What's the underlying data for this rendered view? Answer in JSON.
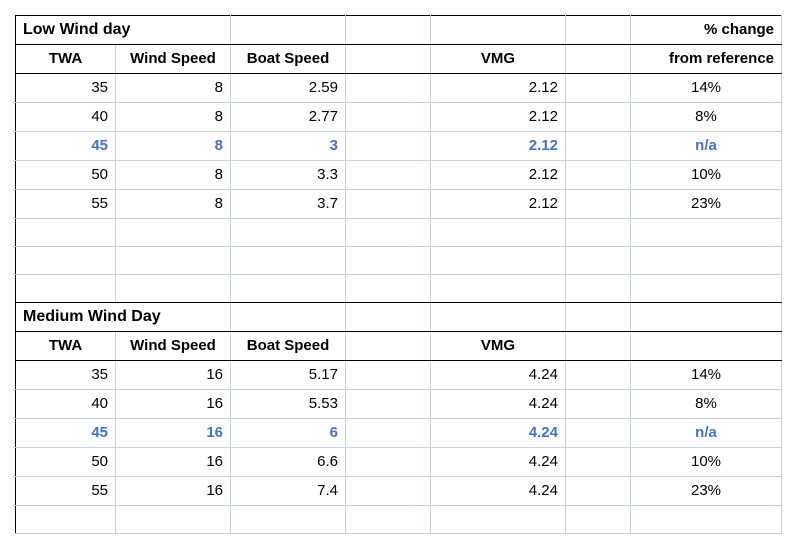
{
  "colors": {
    "background": "#ffffff",
    "gridline": "#c9d2e1",
    "border": "#000000",
    "highlight_text": "#4472c4",
    "text": "#000000"
  },
  "low_wind": {
    "title": "Low Wind day",
    "pct_change_header": "% change",
    "pct_change_subheader": "from reference",
    "headers": {
      "twa": "TWA",
      "wind_speed": "Wind Speed",
      "boat_speed": "Boat Speed",
      "vmg": "VMG"
    },
    "rows": [
      {
        "twa": "35",
        "wind_speed": "8",
        "boat_speed": "2.59",
        "vmg": "2.12",
        "pct_change": "14%",
        "highlighted": false
      },
      {
        "twa": "40",
        "wind_speed": "8",
        "boat_speed": "2.77",
        "vmg": "2.12",
        "pct_change": "8%",
        "highlighted": false
      },
      {
        "twa": "45",
        "wind_speed": "8",
        "boat_speed": "3",
        "vmg": "2.12",
        "pct_change": "n/a",
        "highlighted": true
      },
      {
        "twa": "50",
        "wind_speed": "8",
        "boat_speed": "3.3",
        "vmg": "2.12",
        "pct_change": "10%",
        "highlighted": false
      },
      {
        "twa": "55",
        "wind_speed": "8",
        "boat_speed": "3.7",
        "vmg": "2.12",
        "pct_change": "23%",
        "highlighted": false
      }
    ]
  },
  "medium_wind": {
    "title": "Medium Wind Day",
    "headers": {
      "twa": "TWA",
      "wind_speed": "Wind Speed",
      "boat_speed": "Boat Speed",
      "vmg": "VMG"
    },
    "rows": [
      {
        "twa": "35",
        "wind_speed": "16",
        "boat_speed": "5.17",
        "vmg": "4.24",
        "pct_change": "14%",
        "highlighted": false
      },
      {
        "twa": "40",
        "wind_speed": "16",
        "boat_speed": "5.53",
        "vmg": "4.24",
        "pct_change": "8%",
        "highlighted": false
      },
      {
        "twa": "45",
        "wind_speed": "16",
        "boat_speed": "6",
        "vmg": "4.24",
        "pct_change": "n/a",
        "highlighted": true
      },
      {
        "twa": "50",
        "wind_speed": "16",
        "boat_speed": "6.6",
        "vmg": "4.24",
        "pct_change": "10%",
        "highlighted": false
      },
      {
        "twa": "55",
        "wind_speed": "16",
        "boat_speed": "7.4",
        "vmg": "4.24",
        "pct_change": "23%",
        "highlighted": false
      }
    ]
  }
}
